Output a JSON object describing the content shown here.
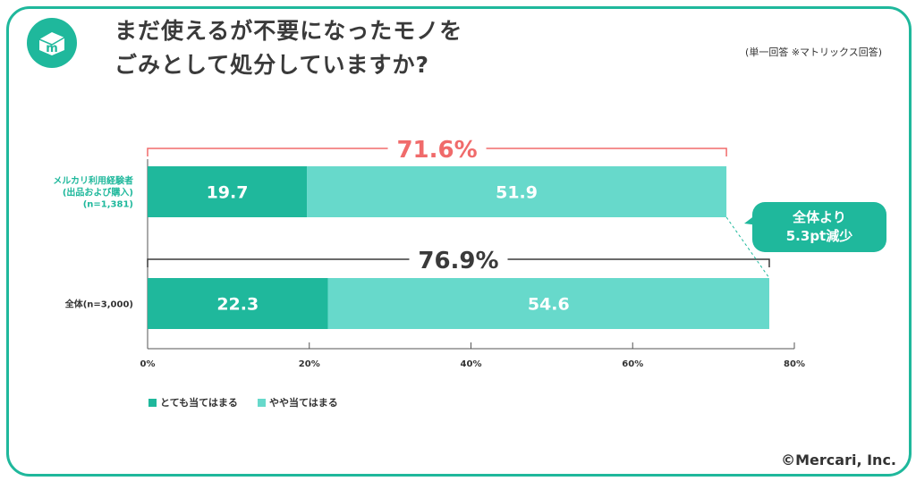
{
  "title_line1": "まだ使えるが不要になったモノを",
  "title_line2": "ごみとして処分していますか?",
  "note": "(単一回答 ※マトリックス回答)",
  "copyright": "©Mercari, Inc.",
  "callout": {
    "line1": "全体より",
    "line2": "5.3pt減少"
  },
  "colors": {
    "dark": "#1fb89c",
    "light": "#67d9cb",
    "accent": "#f06b6b",
    "frame": "#1fb89c"
  },
  "chart_data": {
    "type": "bar",
    "orientation": "horizontal",
    "stacked": true,
    "xlim": [
      0,
      80
    ],
    "xticks": [
      "0%",
      "20%",
      "40%",
      "60%",
      "80%"
    ],
    "categories": [
      {
        "label_lines": [
          "メルカリ利用経験者",
          "(出品および購入)",
          "(n=1,381)"
        ],
        "total_label": "71.6%",
        "total": 71.6
      },
      {
        "label_lines": [
          "全体(n=3,000)"
        ],
        "total_label": "76.9%",
        "total": 76.9
      }
    ],
    "series": [
      {
        "name": "とても当てはまる",
        "values": [
          19.7,
          22.3
        ],
        "labels": [
          "19.7",
          "22.3"
        ]
      },
      {
        "name": "やや当てはまる",
        "values": [
          51.9,
          54.6
        ],
        "labels": [
          "51.9",
          "54.6"
        ]
      }
    ],
    "legend_position": "bottom-left"
  }
}
